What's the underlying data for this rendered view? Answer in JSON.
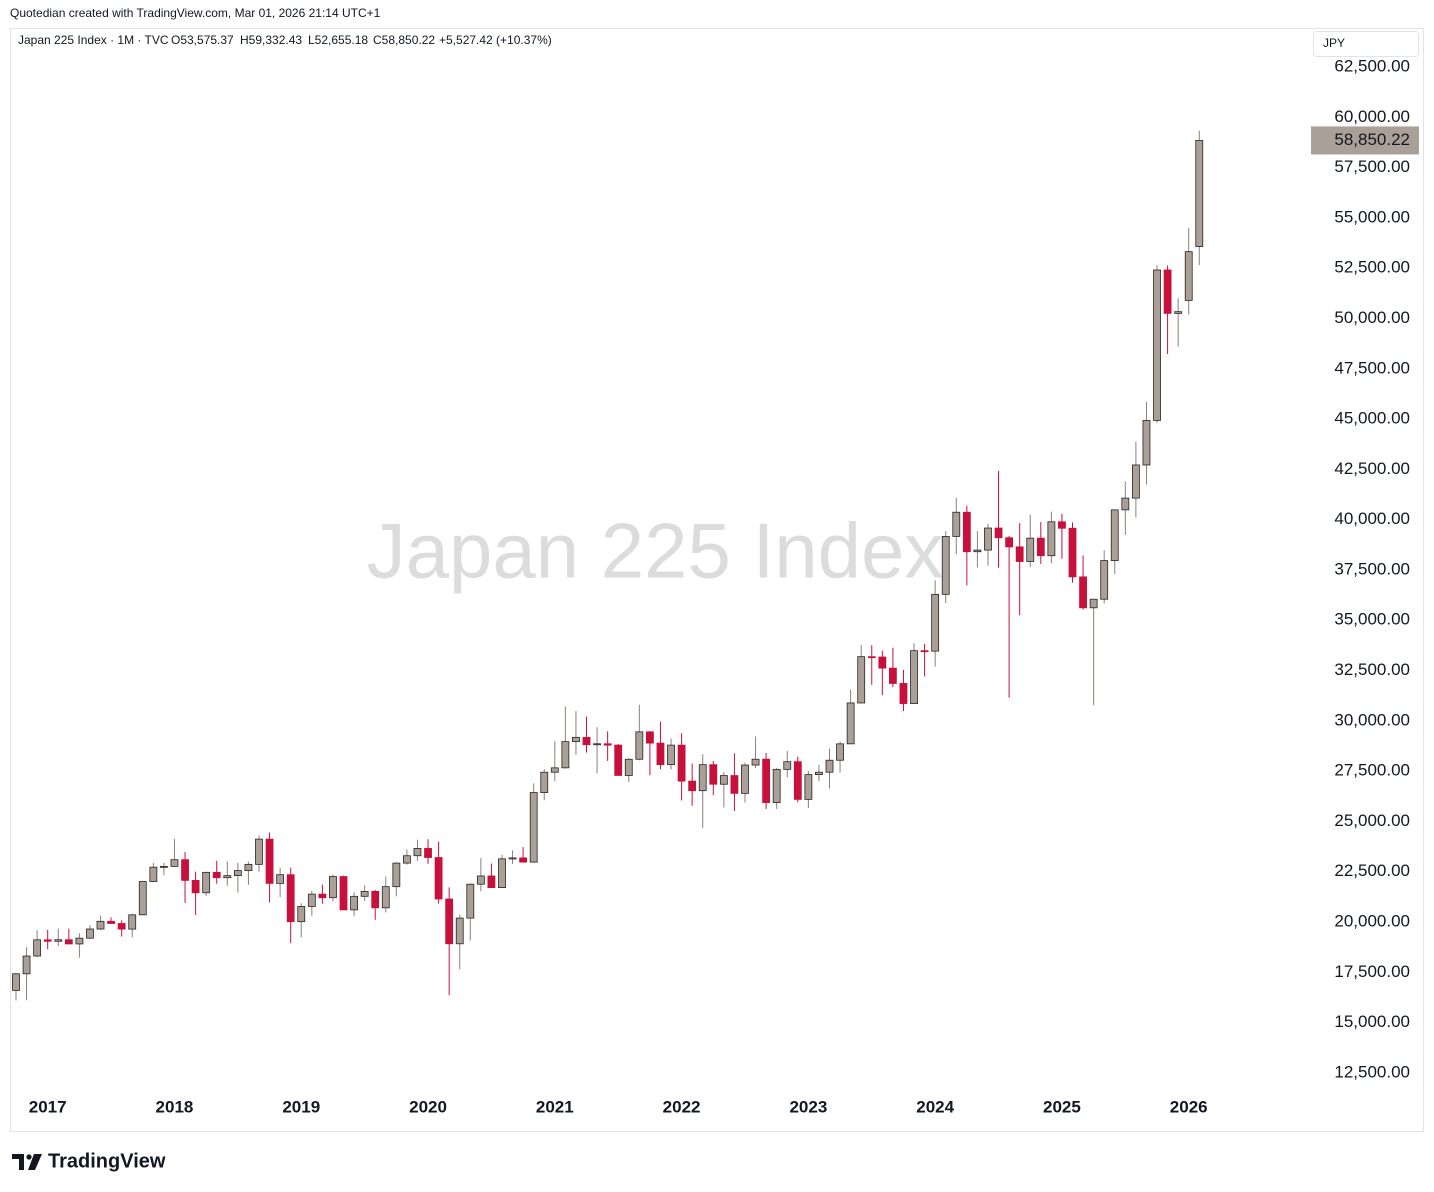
{
  "header": {
    "credit": "Quotedian created with TradingView.com, Mar 01, 2026 21:14 UTC+1",
    "symbol": "Japan 225 Index · 1M · TVC",
    "open": "O53,575.37",
    "high": "H59,332.43",
    "low": "L52,655.18",
    "close": "C58,850.22",
    "change": "+5,527.42 (+10.37%)"
  },
  "footer": {
    "brand": "TradingView"
  },
  "chart_data": {
    "type": "candlestick",
    "watermark": "Japan 225 Index",
    "currency": "JPY",
    "last_price_label": "58,850.22",
    "up_color": "#aaa097",
    "down_color": "#c8103c",
    "categories": [
      null,
      null,
      null,
      "2017",
      null,
      null,
      null,
      null,
      null,
      null,
      null,
      null,
      null,
      null,
      null,
      "2018",
      null,
      null,
      null,
      null,
      null,
      null,
      null,
      null,
      null,
      null,
      null,
      "2019",
      null,
      null,
      null,
      null,
      null,
      null,
      null,
      null,
      null,
      null,
      null,
      "2020",
      null,
      null,
      null,
      null,
      null,
      null,
      null,
      null,
      null,
      null,
      null,
      "2021",
      null,
      null,
      null,
      null,
      null,
      null,
      null,
      null,
      null,
      null,
      null,
      "2022",
      null,
      null,
      null,
      null,
      null,
      null,
      null,
      null,
      null,
      null,
      null,
      "2023",
      null,
      null,
      null,
      null,
      null,
      null,
      null,
      null,
      null,
      null,
      null,
      "2024",
      null,
      null,
      null,
      null,
      null,
      null,
      null,
      null,
      null,
      null,
      null,
      "2025",
      null,
      null,
      null,
      null,
      null,
      null,
      null,
      null,
      null,
      null,
      null,
      "2026",
      null
    ],
    "open": [
      16600,
      17425,
      18308,
      19114,
      19041,
      19119,
      18909,
      19197,
      19651,
      20033,
      19925,
      19646,
      20356,
      22012,
      22725,
      22765,
      23098,
      22068,
      21454,
      22468,
      22202,
      22305,
      22554,
      22865,
      24120,
      21920,
      22351,
      20015,
      20773,
      21385,
      21206,
      22259,
      20601,
      21276,
      21521,
      20704,
      21756,
      22927,
      23294,
      23657,
      23205,
      21143,
      18917,
      20194,
      21878,
      22288,
      21710,
      23140,
      23185,
      22977,
      26434,
      27444,
      27663,
      28966,
      29179,
      28813,
      28860,
      28792,
      27284,
      28090,
      29453,
      28893,
      27822,
      28792,
      27002,
      26527,
      27821,
      26848,
      27280,
      26393,
      27802,
      28092,
      25937,
      27587,
      27969,
      26095,
      27327,
      27446,
      28041,
      28856,
      30888,
      33189,
      33172,
      32619,
      31858,
      30859,
      33487,
      33464,
      36287,
      39166,
      40369,
      38406,
      38488,
      39583,
      39102,
      38648,
      37920,
      39081,
      38208,
      39895,
      39572,
      37156,
      35618,
      36045,
      37965,
      40487,
      41070,
      42718,
      44933,
      52411,
      50254,
      50900,
      53575.37
    ],
    "high": [
      17480,
      18750,
      19590,
      19615,
      19670,
      19668,
      19445,
      19850,
      20318,
      20224,
      20080,
      20400,
      22020,
      22937,
      22939,
      24129,
      23486,
      22502,
      22500,
      23050,
      23011,
      22950,
      23000,
      24306,
      24448,
      22698,
      22698,
      20930,
      21556,
      21860,
      22362,
      22307,
      21477,
      21823,
      21588,
      22255,
      22974,
      23608,
      24091,
      24115,
      23995,
      21719,
      20365,
      21916,
      23178,
      22905,
      23338,
      23559,
      23725,
      26890,
      27602,
      28979,
      30714,
      30485,
      30208,
      29685,
      29480,
      28852,
      28139,
      30795,
      29489,
      29960,
      29121,
      29388,
      27880,
      28338,
      28000,
      27458,
      28389,
      27914,
      29222,
      28402,
      27652,
      28502,
      28226,
      27500,
      27821,
      28623,
      28979,
      31560,
      33772,
      33762,
      33488,
      33634,
      32533,
      33853,
      33824,
      36984,
      39427,
      41088,
      40697,
      39437,
      39788,
      42426,
      39188,
      39829,
      40257,
      39884,
      40398,
      40288,
      39864,
      38220,
      36000,
      38472,
      40487,
      41900,
      43876,
      45852,
      52636,
      52636,
      51000,
      54500,
      59332.43
    ],
    "low": [
      16100,
      16110,
      18250,
      18650,
      18805,
      18900,
      18224,
      19150,
      19600,
      19900,
      19280,
      19239,
      20350,
      21973,
      22328,
      22750,
      20950,
      20347,
      21300,
      21900,
      21800,
      21462,
      21851,
      22500,
      20971,
      21243,
      18948,
      19241,
      20315,
      20911,
      21038,
      20601,
      20289,
      21046,
      20110,
      20477,
      21276,
      22851,
      23044,
      22892,
      20916,
      16358,
      17646,
      19084,
      21530,
      21710,
      21823,
      22878,
      22948,
      22948,
      26054,
      27000,
      27629,
      28308,
      28419,
      27385,
      28010,
      27272,
      26954,
      28036,
      27293,
      27595,
      27588,
      26044,
      25776,
      24681,
      26304,
      25688,
      25520,
      25935,
      27652,
      25621,
      25621,
      27199,
      25953,
      25662,
      27009,
      26632,
      27427,
      28851,
      30888,
      31791,
      31275,
      31674,
      30487,
      30859,
      32205,
      32693,
      35854,
      38271,
      36733,
      37617,
      37711,
      37611,
      31156,
      35247,
      37651,
      37800,
      37835,
      38055,
      36867,
      35526,
      30793,
      35835,
      37300,
      39246,
      40112,
      41740,
      44814,
      48235,
      48600,
      50200,
      52655.18
    ],
    "close": [
      17425,
      18308,
      19114,
      19041,
      19119,
      18909,
      19197,
      19651,
      20033,
      19925,
      19646,
      20356,
      22012,
      22725,
      22765,
      23098,
      22068,
      21454,
      22468,
      22202,
      22305,
      22554,
      22865,
      24120,
      21920,
      22351,
      20015,
      20773,
      21385,
      21206,
      22259,
      20601,
      21276,
      21521,
      20704,
      21756,
      22927,
      23294,
      23657,
      23205,
      21143,
      18917,
      20194,
      21878,
      22288,
      21710,
      23140,
      23185,
      22977,
      26434,
      27444,
      27663,
      28966,
      29179,
      28813,
      28860,
      28792,
      27284,
      28090,
      29453,
      28893,
      27822,
      28792,
      27002,
      26527,
      27821,
      26848,
      27280,
      26393,
      27802,
      28092,
      25937,
      27587,
      27969,
      26095,
      27327,
      27446,
      28041,
      28856,
      30888,
      33189,
      33172,
      32619,
      31858,
      30859,
      33487,
      33464,
      36287,
      39166,
      40369,
      38406,
      38488,
      39583,
      39102,
      38648,
      37920,
      39081,
      38208,
      39895,
      39572,
      37156,
      35618,
      36045,
      37965,
      40487,
      41070,
      42718,
      44933,
      52411,
      50254,
      50339,
      53322.8,
      58850.22
    ],
    "ylim": [
      11400,
      64440
    ],
    "yticks": [
      {
        "value": 12500,
        "label": "12,500.00"
      },
      {
        "value": 15000,
        "label": "15,000.00"
      },
      {
        "value": 17500,
        "label": "17,500.00"
      },
      {
        "value": 20000,
        "label": "20,000.00"
      },
      {
        "value": 22500,
        "label": "22,500.00"
      },
      {
        "value": 25000,
        "label": "25,000.00"
      },
      {
        "value": 27500,
        "label": "27,500.00"
      },
      {
        "value": 30000,
        "label": "30,000.00"
      },
      {
        "value": 32500,
        "label": "32,500.00"
      },
      {
        "value": 35000,
        "label": "35,000.00"
      },
      {
        "value": 37500,
        "label": "37,500.00"
      },
      {
        "value": 40000,
        "label": "40,000.00"
      },
      {
        "value": 42500,
        "label": "42,500.00"
      },
      {
        "value": 45000,
        "label": "45,000.00"
      },
      {
        "value": 47500,
        "label": "47,500.00"
      },
      {
        "value": 50000,
        "label": "50,000.00"
      },
      {
        "value": 52500,
        "label": "52,500.00"
      },
      {
        "value": 55000,
        "label": "55,000.00"
      },
      {
        "value": 57500,
        "label": "57,500.00"
      },
      {
        "value": 60000,
        "label": "60,000.00"
      },
      {
        "value": 62500,
        "label": "62,500.00"
      }
    ],
    "grid": false
  }
}
